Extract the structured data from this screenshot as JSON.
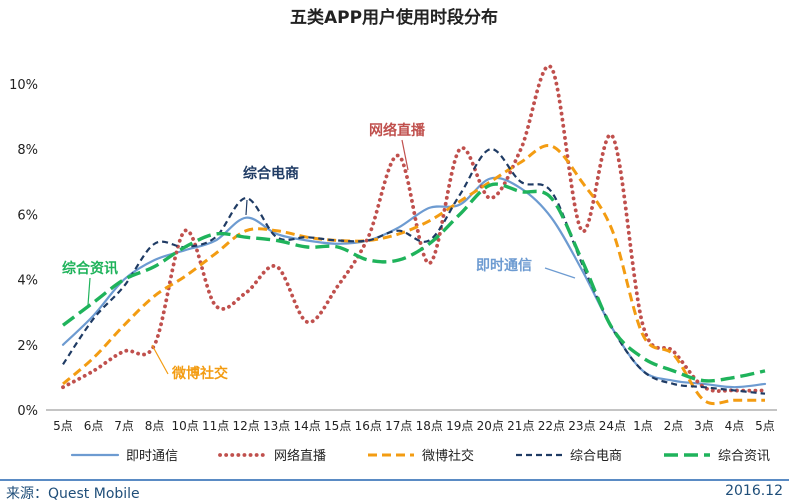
{
  "chart_data": {
    "type": "line",
    "title": "五类APP用户使用时段分布",
    "x": [
      "5点",
      "6点",
      "7点",
      "8点",
      "10点",
      "11点",
      "12点",
      "13点",
      "14点",
      "15点",
      "16点",
      "17点",
      "18点",
      "19点",
      "20点",
      "21点",
      "22点",
      "23点",
      "24点",
      "1点",
      "2点",
      "3点",
      "4点",
      "5点"
    ],
    "ylim": [
      0,
      10
    ],
    "yticks": [
      "0%",
      "2%",
      "4%",
      "6%",
      "8%",
      "10%"
    ],
    "grid": false,
    "legend": "bottom",
    "series": [
      {
        "name": "即时通信",
        "color": "#6d9bd1",
        "dash": "solid",
        "values": [
          2.0,
          2.9,
          4.0,
          4.6,
          4.9,
          5.2,
          5.9,
          5.4,
          5.2,
          5.1,
          5.2,
          5.6,
          6.2,
          6.3,
          7.1,
          6.8,
          5.9,
          4.3,
          2.5,
          1.2,
          0.9,
          0.8,
          0.7,
          0.8
        ]
      },
      {
        "name": "网络直播",
        "color": "#c0504d",
        "dash": "dots",
        "values": [
          0.7,
          1.2,
          1.8,
          2.0,
          5.5,
          3.2,
          3.6,
          4.4,
          2.7,
          3.8,
          5.3,
          7.8,
          4.5,
          8.0,
          6.5,
          8.0,
          10.5,
          5.5,
          8.4,
          2.6,
          1.8,
          0.7,
          0.6,
          0.6
        ]
      },
      {
        "name": "微博社交",
        "color": "#f39c12",
        "dash": "dash",
        "values": [
          0.8,
          1.6,
          2.6,
          3.5,
          4.1,
          4.8,
          5.5,
          5.5,
          5.3,
          5.2,
          5.2,
          5.4,
          5.8,
          6.4,
          7.0,
          7.6,
          8.1,
          7.0,
          5.5,
          2.3,
          1.7,
          0.3,
          0.3,
          0.3
        ]
      },
      {
        "name": "综合电商",
        "color": "#1f3b64",
        "dash": "smalldash",
        "values": [
          1.4,
          2.8,
          3.8,
          5.1,
          5.0,
          5.3,
          6.5,
          5.3,
          5.3,
          5.2,
          5.2,
          5.5,
          5.2,
          6.6,
          8.0,
          7.0,
          6.7,
          4.5,
          2.5,
          1.2,
          0.8,
          0.7,
          0.6,
          0.5
        ]
      },
      {
        "name": "综合资讯",
        "color": "#1fb35b",
        "dash": "longdash",
        "values": [
          2.6,
          3.3,
          4.0,
          4.4,
          5.0,
          5.4,
          5.3,
          5.2,
          5.0,
          5.0,
          4.6,
          4.6,
          5.1,
          6.0,
          6.9,
          6.7,
          6.5,
          4.6,
          2.5,
          1.6,
          1.2,
          0.9,
          1.0,
          1.2
        ]
      }
    ],
    "annotations": [
      {
        "text": "综合电商",
        "series": "综合电商",
        "color": "#1f3b64"
      },
      {
        "text": "网络直播",
        "series": "网络直播",
        "color": "#c0504d"
      },
      {
        "text": "综合资讯",
        "series": "综合资讯",
        "color": "#1fb35b"
      },
      {
        "text": "微博社交",
        "series": "微博社交",
        "color": "#f39c12"
      },
      {
        "text": "即时通信",
        "series": "即时通信",
        "color": "#6d9bd1"
      }
    ]
  },
  "footer": {
    "source": "来源：Quest Mobile",
    "date": "2016.12"
  }
}
